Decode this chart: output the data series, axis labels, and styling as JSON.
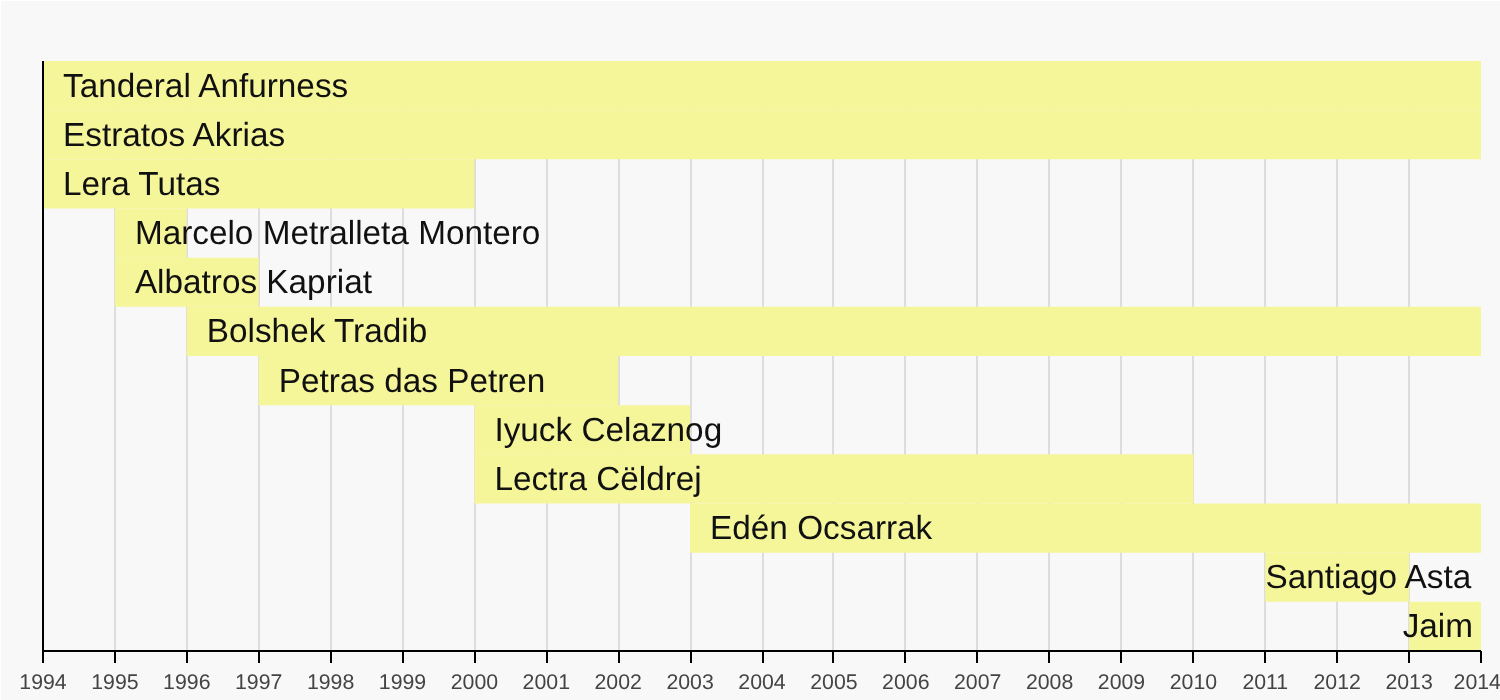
{
  "chart_data": {
    "type": "bar",
    "orientation": "horizontal",
    "categories": [
      "Tanderal Anfurness",
      "Estratos Akrias",
      "Lera Tutas",
      "Marcelo Metralleta Montero",
      "Albatros Kapriat",
      "Bolshek Tradib",
      "Petras das Petren",
      "Iyuck Celaznog",
      "Lectra Cëldrej",
      "Edén Ocsarrak",
      "Santiago Asta",
      "Jaim"
    ],
    "base": [
      1994,
      1994,
      1994,
      1995,
      1995,
      1996,
      1997,
      2000,
      2000,
      2003,
      2011,
      2013
    ],
    "values": [
      20,
      20,
      6,
      1,
      2,
      18,
      5,
      3,
      10,
      11,
      2,
      1
    ],
    "color": "#f5f59a",
    "xlim": [
      1994,
      2014
    ],
    "xticks": [
      1994,
      1995,
      1996,
      1997,
      1998,
      1999,
      2000,
      2001,
      2002,
      2003,
      2004,
      2005,
      2006,
      2007,
      2008,
      2009,
      2010,
      2011,
      2012,
      2013,
      2014
    ],
    "grid": "x",
    "tick_labels": "x"
  }
}
